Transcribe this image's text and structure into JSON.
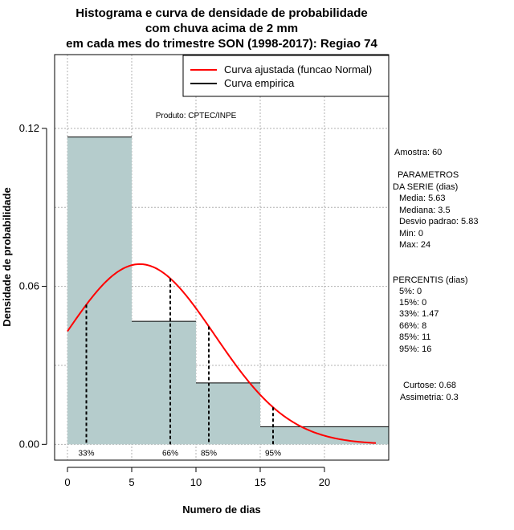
{
  "chart_data": {
    "type": "histogram",
    "title_lines": [
      "Histograma e curva de densidade de probabilidade",
      "com chuva acima de 2 mm",
      "em cada mes do trimestre SON (1998-2017): Regiao 74"
    ],
    "xlabel": "Numero de dias",
    "ylabel": "Densidade de probabilidade",
    "xlim": [
      -1,
      25
    ],
    "ylim": [
      -0.006,
      0.148
    ],
    "x_ticks": [
      0,
      5,
      10,
      15,
      20
    ],
    "x_tick_labels": [
      "0",
      "5",
      "10",
      "15",
      "20"
    ],
    "y_ticks": [
      0.0,
      0.06,
      0.12
    ],
    "y_tick_labels": [
      "0.00",
      "0.06",
      "0.12"
    ],
    "x_grid": [
      0,
      5,
      10,
      15,
      20
    ],
    "y_grid": [
      0.0,
      0.03,
      0.06,
      0.09,
      0.12
    ],
    "bins": [
      {
        "x0": 0,
        "x1": 5,
        "density": 0.1167
      },
      {
        "x0": 5,
        "x1": 10,
        "density": 0.0467
      },
      {
        "x0": 10,
        "x1": 15,
        "density": 0.0233
      },
      {
        "x0": 15,
        "x1": 25,
        "density": 0.0067
      }
    ],
    "curve": {
      "name": "Curva ajustada (funcao Normal)",
      "mean": 5.63,
      "sd": 5.83,
      "x_start": 0,
      "x_end": 24,
      "color": "#ff0000"
    },
    "percentile_lines": [
      {
        "x": 1.47,
        "label": "33%"
      },
      {
        "x": 8,
        "label": "66%"
      },
      {
        "x": 11,
        "label": "85%"
      },
      {
        "x": 16,
        "label": "95%"
      }
    ],
    "legend": [
      {
        "label": "Curva ajustada (funcao Normal)",
        "color": "#ff0000"
      },
      {
        "label": "Curva empirica",
        "color": "#000000"
      }
    ],
    "legend_position": "top-right",
    "annotation": "Produto: CPTEC/INPE",
    "bar_color": "#b5cccc"
  },
  "stats": {
    "sample": "Amostra: 60",
    "params_title_1": "PARAMETROS",
    "params_title_2": "DA SERIE (dias)",
    "media": "Media: 5.63",
    "mediana": "Mediana: 3.5",
    "desvio": "Desvio padrao: 5.83",
    "min": "Min: 0",
    "max": "Max: 24",
    "percentis_title": "PERCENTIS (dias)",
    "p5": "5%: 0",
    "p15": "15%: 0",
    "p33": "33%: 1.47",
    "p66": "66%: 8",
    "p85": "85%: 11",
    "p95": "95%: 16",
    "curtose": "Curtose: 0.68",
    "assimetria": "Assimetria: 0.3"
  }
}
